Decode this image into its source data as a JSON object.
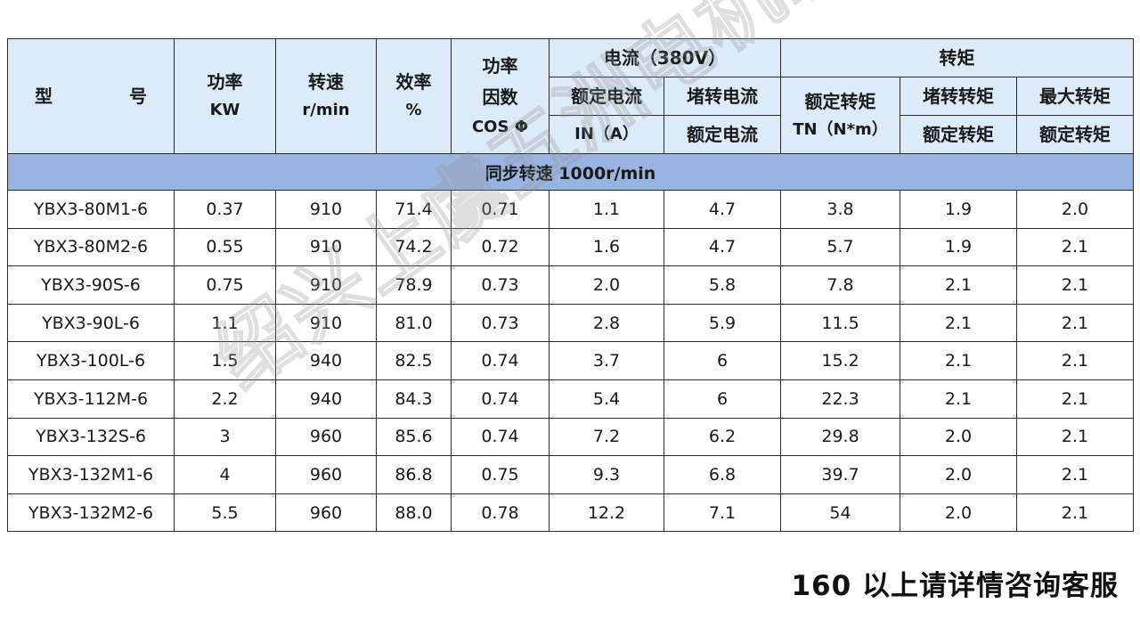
{
  "header": {
    "model": [
      "型",
      "号"
    ],
    "power": [
      "功率",
      "KW"
    ],
    "speed": [
      "转速",
      "r/min"
    ],
    "efficiency": [
      "效率",
      "%"
    ],
    "power_factor": [
      "功率",
      "因数",
      "COS Φ"
    ],
    "current_group": "电流（380V）",
    "rated_current": [
      "额定电流",
      "IN（A）"
    ],
    "locked_current": [
      "堵转电流",
      "额定电流"
    ],
    "torque_group": "转矩",
    "rated_torque": [
      "额定转矩",
      "TN（N*m）"
    ],
    "locked_torque": [
      "堵转转矩",
      "额定转矩"
    ],
    "max_torque": [
      "最大转矩",
      "额定转矩"
    ]
  },
  "section_title": "同步转速 1000r/min",
  "rows": [
    {
      "model": "YBX3-80M1-6",
      "power": "0.37",
      "speed": "910",
      "efficiency": "71.4",
      "pf": "0.71",
      "in": "1.1",
      "locked_ratio": "4.7",
      "tn": "3.8",
      "locked_torque": "1.9",
      "max_torque": "2.0"
    },
    {
      "model": "YBX3-80M2-6",
      "power": "0.55",
      "speed": "910",
      "efficiency": "74.2",
      "pf": "0.72",
      "in": "1.6",
      "locked_ratio": "4.7",
      "tn": "5.7",
      "locked_torque": "1.9",
      "max_torque": "2.1"
    },
    {
      "model": "YBX3-90S-6",
      "power": "0.75",
      "speed": "910",
      "efficiency": "78.9",
      "pf": "0.73",
      "in": "2.0",
      "locked_ratio": "5.8",
      "tn": "7.8",
      "locked_torque": "2.1",
      "max_torque": "2.1"
    },
    {
      "model": "YBX3-90L-6",
      "power": "1.1",
      "speed": "910",
      "efficiency": "81.0",
      "pf": "0.73",
      "in": "2.8",
      "locked_ratio": "5.9",
      "tn": "11.5",
      "locked_torque": "2.1",
      "max_torque": "2.1"
    },
    {
      "model": "YBX3-100L-6",
      "power": "1.5",
      "speed": "940",
      "efficiency": "82.5",
      "pf": "0.74",
      "in": "3.7",
      "locked_ratio": "6",
      "tn": "15.2",
      "locked_torque": "2.1",
      "max_torque": "2.1"
    },
    {
      "model": "YBX3-112M-6",
      "power": "2.2",
      "speed": "940",
      "efficiency": "84.3",
      "pf": "0.74",
      "in": "5.4",
      "locked_ratio": "6",
      "tn": "22.3",
      "locked_torque": "2.1",
      "max_torque": "2.1"
    },
    {
      "model": "YBX3-132S-6",
      "power": "3",
      "speed": "960",
      "efficiency": "85.6",
      "pf": "0.74",
      "in": "7.2",
      "locked_ratio": "6.2",
      "tn": "29.8",
      "locked_torque": "2.0",
      "max_torque": "2.1"
    },
    {
      "model": "YBX3-132M1-6",
      "power": "4",
      "speed": "960",
      "efficiency": "86.8",
      "pf": "0.75",
      "in": "9.3",
      "locked_ratio": "6.8",
      "tn": "39.7",
      "locked_torque": "2.0",
      "max_torque": "2.1"
    },
    {
      "model": "YBX3-132M2-6",
      "power": "5.5",
      "speed": "960",
      "efficiency": "88.0",
      "pf": "0.78",
      "in": "12.2",
      "locked_ratio": "7.1",
      "tn": "54",
      "locked_torque": "2.0",
      "max_torque": "2.1"
    }
  ],
  "footnote": "160 以上请详情咨询客服",
  "watermark": "绍兴上虞五洲电机制造有限公司",
  "colors": {
    "header_bg": "#dcebf7",
    "section_bg": "#98b4e0",
    "border": "#2b2b2b"
  }
}
